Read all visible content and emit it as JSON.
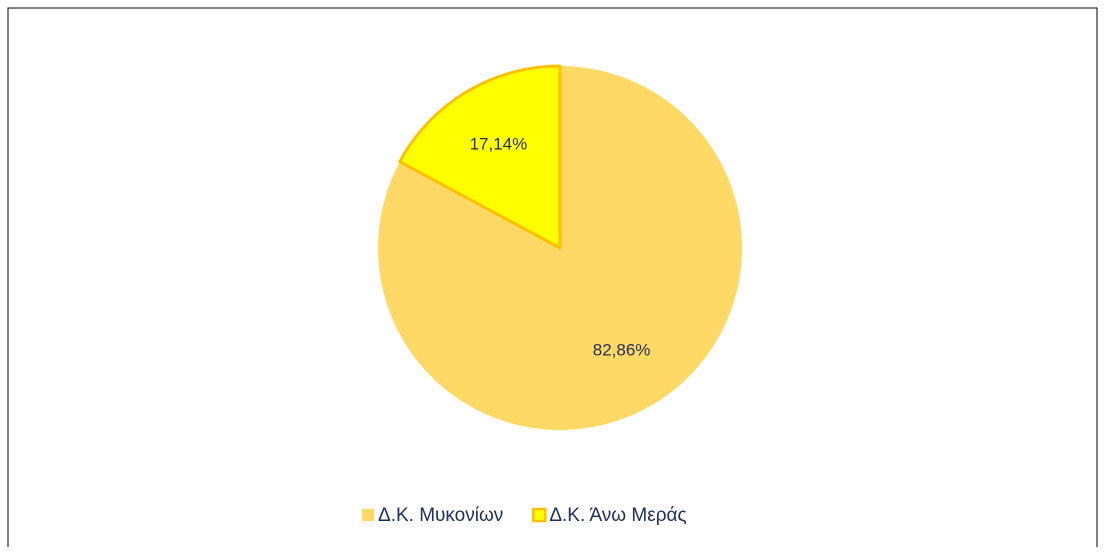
{
  "chart_data": {
    "type": "pie",
    "categories": [
      "Δ.Κ. Μυκονίων",
      "Δ.Κ. Άνω Μεράς"
    ],
    "values": [
      82.86,
      17.14
    ],
    "value_labels": [
      "82,86%",
      "17,14%"
    ],
    "colors": [
      "#ffd966",
      "#ffff00"
    ],
    "edge_colors": [
      null,
      "#ffc000"
    ],
    "legend": "bottom"
  }
}
